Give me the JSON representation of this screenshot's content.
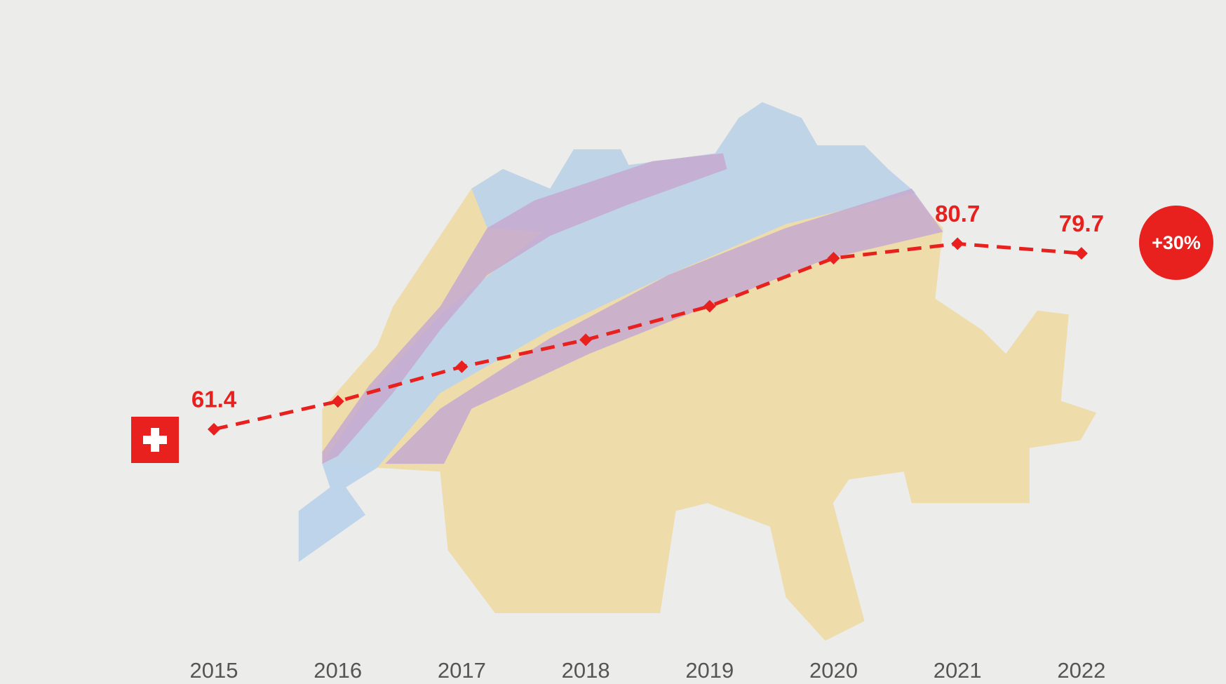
{
  "chart_data": {
    "type": "line",
    "categories": [
      "2015",
      "2016",
      "2017",
      "2018",
      "2019",
      "2020",
      "2021",
      "2022"
    ],
    "values": [
      61.4,
      64.3,
      67.9,
      70.7,
      74.2,
      79.2,
      80.7,
      79.7
    ],
    "value_labels": [
      "61.4",
      null,
      null,
      null,
      null,
      null,
      "80.7",
      "79.7"
    ],
    "color": "#e8211e",
    "ylim": [
      40,
      100
    ],
    "annotation": "+30%"
  }
}
